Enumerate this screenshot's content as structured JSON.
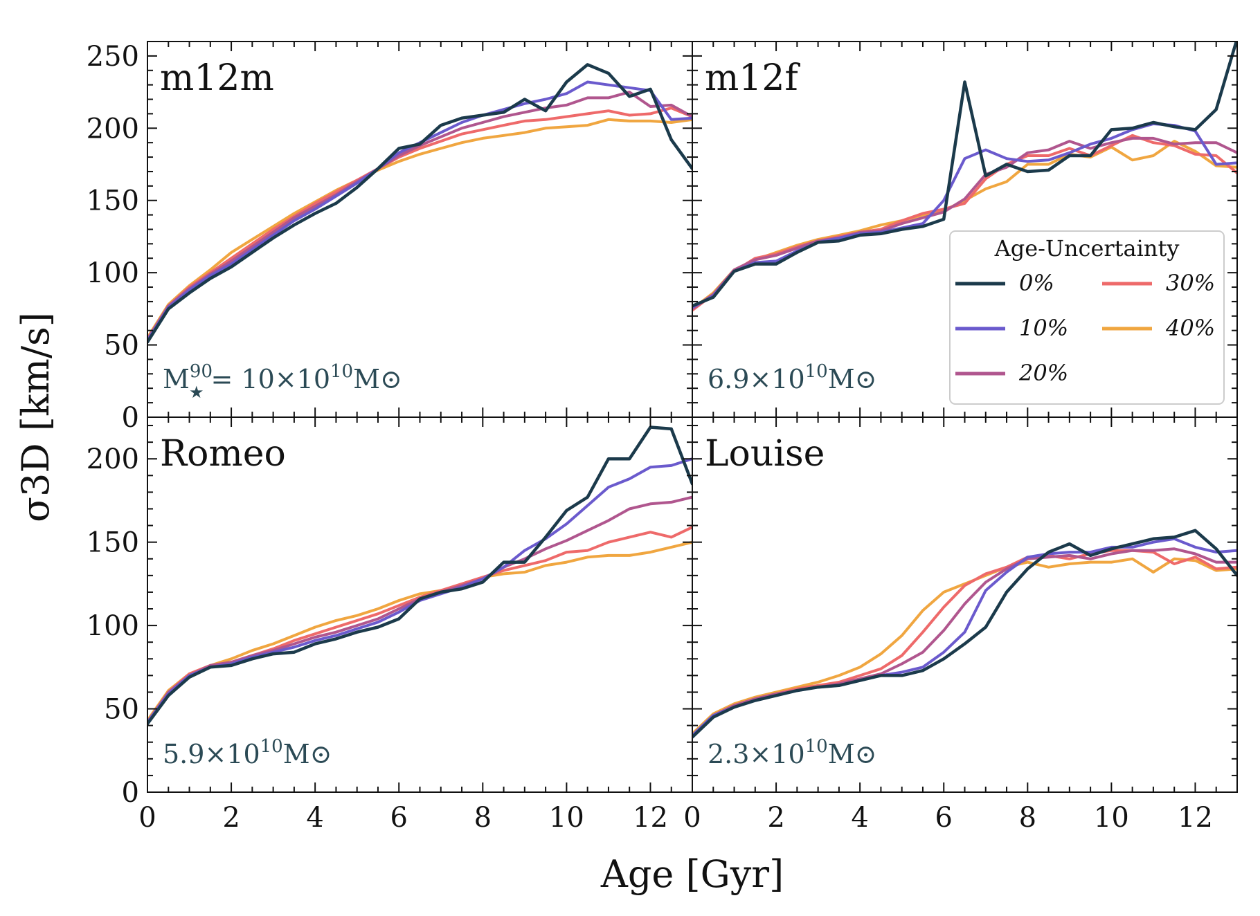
{
  "chart_data": {
    "type": "line",
    "xlabel": "Age [Gyr]",
    "ylabel": "σ3D [km/s]",
    "xlim": [
      0,
      13
    ],
    "x_ticks": [
      "0",
      "2",
      "4",
      "6",
      "8",
      "10",
      "12"
    ],
    "legend": {
      "title": "Age-Uncertainty",
      "placement": "right, inside m12f panel",
      "entries": [
        {
          "label": "0%",
          "color": "#1b3a4b"
        },
        {
          "label": "10%",
          "color": "#6a5acd"
        },
        {
          "label": "20%",
          "color": "#b0568e"
        },
        {
          "label": "30%",
          "color": "#ee6a6a"
        },
        {
          "label": "40%",
          "color": "#f0a640"
        }
      ]
    },
    "x": [
      0,
      0.5,
      1,
      1.5,
      2,
      2.5,
      3,
      3.5,
      4,
      4.5,
      5,
      5.5,
      6,
      6.5,
      7,
      7.5,
      8,
      8.5,
      9,
      9.5,
      10,
      10.5,
      11,
      11.5,
      12,
      12.5,
      13
    ],
    "panels": [
      {
        "name": "m12m",
        "mass": "10",
        "mass_prefix": "M",
        "mass_sup": "90",
        "ylim": [
          0,
          260
        ],
        "y_ticks": [
          "0",
          "50",
          "100",
          "150",
          "200",
          "250"
        ],
        "series": [
          {
            "name": "0%",
            "values": [
              52,
              75,
              86,
              96,
              104,
              114,
              124,
              133,
              141,
              148,
              159,
              172,
              186,
              189,
              202,
              207,
              209,
              211,
              220,
              212,
              232,
              244,
              238,
              222,
              227,
              192,
              172
            ]
          },
          {
            "name": "10%",
            "values": [
              53,
              76,
              88,
              98,
              106,
              116,
              126,
              136,
              144,
              153,
              162,
              172,
              183,
              190,
              197,
              204,
              209,
              213,
              217,
              220,
              224,
              232,
              230,
              228,
              226,
              206,
              207
            ]
          },
          {
            "name": "20%",
            "values": [
              54,
              77,
              89,
              99,
              108,
              118,
              128,
              138,
              146,
              154,
              163,
              172,
              181,
              188,
              194,
              200,
              204,
              208,
              211,
              214,
              216,
              221,
              221,
              225,
              215,
              216,
              208
            ]
          },
          {
            "name": "30%",
            "values": [
              54,
              77,
              90,
              100,
              110,
              120,
              130,
              139,
              148,
              156,
              164,
              172,
              180,
              186,
              191,
              196,
              199,
              202,
              205,
              206,
              208,
              210,
              212,
              209,
              210,
              214,
              208
            ]
          },
          {
            "name": "40%",
            "values": [
              55,
              78,
              91,
              102,
              114,
              123,
              132,
              141,
              149,
              157,
              164,
              171,
              177,
              182,
              186,
              190,
              193,
              195,
              197,
              200,
              201,
              202,
              206,
              205,
              205,
              204,
              206
            ]
          }
        ]
      },
      {
        "name": "m12f",
        "mass": "6.9",
        "mass_prefix": "",
        "mass_sup": "",
        "ylim": [
          0,
          260
        ],
        "y_ticks": [],
        "series": [
          {
            "name": "0%",
            "values": [
              77,
              83,
              101,
              106,
              106,
              114,
              121,
              122,
              126,
              127,
              130,
              132,
              137,
              232,
              167,
              175,
              170,
              171,
              181,
              181,
              199,
              200,
              204,
              201,
              199,
              213,
              262
            ]
          },
          {
            "name": "10%",
            "values": [
              76,
              84,
              101,
              107,
              108,
              115,
              121,
              124,
              127,
              128,
              131,
              134,
              150,
              179,
              185,
              179,
              177,
              178,
              183,
              189,
              193,
              199,
              203,
              202,
              198,
              175,
              176
            ]
          },
          {
            "name": "20%",
            "values": [
              75,
              85,
              102,
              109,
              112,
              117,
              122,
              124,
              128,
              129,
              134,
              138,
              142,
              151,
              168,
              173,
              183,
              185,
              191,
              186,
              190,
              193,
              193,
              189,
              190,
              190,
              183
            ]
          },
          {
            "name": "30%",
            "values": [
              74,
              85,
              101,
              110,
              113,
              118,
              122,
              125,
              128,
              130,
              136,
              141,
              144,
              148,
              165,
              175,
              181,
              181,
              186,
              181,
              188,
              195,
              190,
              188,
              182,
              181,
              169
            ]
          },
          {
            "name": "40%",
            "values": [
              75,
              86,
              102,
              109,
              114,
              119,
              123,
              126,
              129,
              133,
              136,
              140,
              143,
              150,
              158,
              163,
              175,
              175,
              182,
              180,
              187,
              178,
              181,
              191,
              184,
              174,
              173
            ]
          }
        ]
      },
      {
        "name": "Romeo",
        "mass": "5.9",
        "mass_prefix": "",
        "mass_sup": "",
        "ylim": [
          0,
          225
        ],
        "y_ticks": [
          "0",
          "50",
          "100",
          "150",
          "200"
        ],
        "series": [
          {
            "name": "0%",
            "values": [
              41,
              58,
              69,
              75,
              76,
              80,
              83,
              84,
              89,
              92,
              96,
              99,
              104,
              116,
              120,
              122,
              126,
              138,
              138,
              153,
              169,
              177,
              200,
              200,
              219,
              218,
              185
            ]
          },
          {
            "name": "10%",
            "values": [
              42,
              59,
              70,
              75,
              77,
              81,
              84,
              87,
              91,
              94,
              98,
              102,
              108,
              115,
              119,
              123,
              128,
              135,
              145,
              152,
              161,
              172,
              183,
              188,
              195,
              196,
              200
            ]
          },
          {
            "name": "20%",
            "values": [
              42,
              60,
              70,
              76,
              78,
              82,
              85,
              89,
              93,
              96,
              100,
              104,
              110,
              116,
              120,
              124,
              128,
              135,
              140,
              146,
              151,
              157,
              163,
              170,
              173,
              174,
              177
            ]
          },
          {
            "name": "30%",
            "values": [
              42,
              60,
              71,
              76,
              78,
              82,
              86,
              91,
              95,
              99,
              103,
              107,
              112,
              117,
              121,
              125,
              129,
              133,
              136,
              139,
              144,
              145,
              150,
              153,
              156,
              153,
              159
            ]
          },
          {
            "name": "40%",
            "values": [
              43,
              61,
              71,
              76,
              80,
              85,
              89,
              94,
              99,
              103,
              106,
              110,
              115,
              119,
              121,
              124,
              129,
              131,
              132,
              136,
              138,
              141,
              142,
              142,
              144,
              147,
              150
            ]
          }
        ]
      },
      {
        "name": "Louise",
        "mass": "2.3",
        "mass_prefix": "",
        "mass_sup": "",
        "ylim": [
          0,
          225
        ],
        "y_ticks": [],
        "series": [
          {
            "name": "0%",
            "values": [
              33,
              45,
              51,
              55,
              58,
              61,
              63,
              64,
              67,
              70,
              70,
              73,
              80,
              89,
              99,
              120,
              134,
              144,
              149,
              142,
              146,
              149,
              152,
              153,
              157,
              146,
              130
            ]
          },
          {
            "name": "10%",
            "values": [
              34,
              46,
              51,
              55,
              58,
              61,
              63,
              64,
              67,
              70,
              72,
              75,
              84,
              96,
              121,
              132,
              141,
              143,
              144,
              144,
              147,
              147,
              150,
              152,
              147,
              144,
              145
            ]
          },
          {
            "name": "20%",
            "values": [
              34,
              46,
              52,
              56,
              59,
              61,
              63,
              65,
              68,
              71,
              77,
              84,
              97,
              113,
              126,
              134,
              140,
              141,
              142,
              140,
              143,
              145,
              145,
              146,
              143,
              138,
              138
            ]
          },
          {
            "name": "30%",
            "values": [
              34,
              46,
              52,
              56,
              59,
              62,
              64,
              66,
              70,
              74,
              82,
              96,
              111,
              124,
              131,
              135,
              141,
              142,
              140,
              143,
              145,
              145,
              144,
              137,
              141,
              134,
              135
            ]
          },
          {
            "name": "40%",
            "values": [
              35,
              47,
              53,
              57,
              60,
              63,
              66,
              70,
              75,
              83,
              94,
              109,
              120,
              125,
              130,
              135,
              138,
              135,
              137,
              138,
              138,
              140,
              132,
              140,
              139,
              133,
              134
            ]
          }
        ]
      }
    ]
  }
}
